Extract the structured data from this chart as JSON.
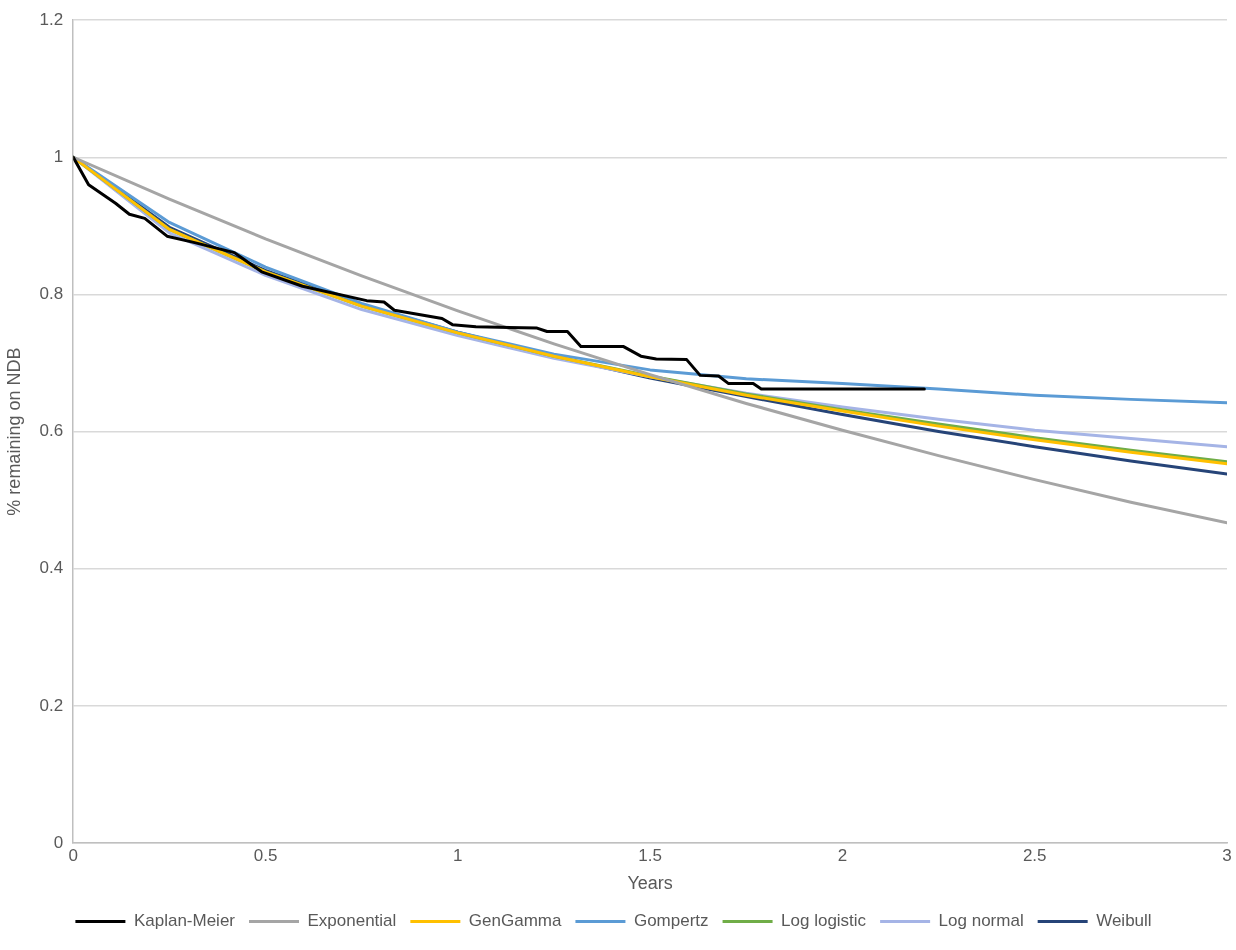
{
  "chart_data": {
    "type": "line",
    "xlabel": "Years",
    "ylabel": "% remaining on NDB",
    "xlim": [
      0,
      3
    ],
    "xticks": [
      0,
      0.5,
      1,
      1.5,
      2,
      2.5,
      3
    ],
    "ylim": [
      0,
      1.2
    ],
    "yticks": [
      0,
      0.2,
      0.4,
      0.6,
      0.8,
      1,
      1.2
    ],
    "grid": "y",
    "legend": "bottom",
    "marker": "none",
    "line_style": "solid",
    "series": [
      {
        "name": "Kaplan-Meier",
        "color": "#000000",
        "x": [
          0,
          0.04,
          0.11,
          0.146,
          0.186,
          0.244,
          0.313,
          0.419,
          0.49,
          0.596,
          0.763,
          0.808,
          0.835,
          0.959,
          0.986,
          1.047,
          1.206,
          1.232,
          1.285,
          1.32,
          1.431,
          1.476,
          1.516,
          1.595,
          1.63,
          1.678,
          1.704,
          1.768,
          1.789,
          2.213
        ],
        "values": [
          1,
          0.96,
          0.933,
          0.917,
          0.911,
          0.885,
          0.876,
          0.861,
          0.833,
          0.812,
          0.791,
          0.789,
          0.777,
          0.765,
          0.756,
          0.753,
          0.751,
          0.746,
          0.746,
          0.724,
          0.724,
          0.71,
          0.706,
          0.705,
          0.682,
          0.681,
          0.67,
          0.67,
          0.662,
          0.662
        ]
      },
      {
        "name": "Exponential",
        "color": "#a5a5a5",
        "x": [
          0,
          0.25,
          0.5,
          0.75,
          1,
          1.25,
          1.5,
          1.75,
          2,
          2.25,
          2.5,
          2.75,
          3
        ],
        "values": [
          1,
          0.939,
          0.881,
          0.827,
          0.776,
          0.728,
          0.683,
          0.641,
          0.602,
          0.565,
          0.53,
          0.497,
          0.467
        ]
      },
      {
        "name": "GenGamma",
        "color": "#ffc000",
        "x": [
          0,
          0.25,
          0.5,
          0.75,
          1,
          1.25,
          1.5,
          1.75,
          2,
          2.25,
          2.5,
          2.75,
          3
        ],
        "values": [
          1,
          0.895,
          0.833,
          0.783,
          0.744,
          0.71,
          0.68,
          0.653,
          0.63,
          0.608,
          0.588,
          0.57,
          0.553
        ]
      },
      {
        "name": "Gompertz",
        "color": "#5b9bd5",
        "x": [
          0,
          0.25,
          0.5,
          0.75,
          1,
          1.25,
          1.5,
          1.75,
          2,
          2.25,
          2.5,
          2.75,
          3
        ],
        "values": [
          1,
          0.905,
          0.84,
          0.787,
          0.745,
          0.713,
          0.69,
          0.677,
          0.67,
          0.662,
          0.653,
          0.647,
          0.642
        ]
      },
      {
        "name": "Log logistic",
        "color": "#70ad47",
        "x": [
          0,
          0.25,
          0.5,
          0.75,
          1,
          1.25,
          1.5,
          1.75,
          2,
          2.25,
          2.5,
          2.75,
          3
        ],
        "values": [
          1,
          0.895,
          0.833,
          0.783,
          0.744,
          0.71,
          0.681,
          0.655,
          0.632,
          0.611,
          0.591,
          0.573,
          0.556
        ]
      },
      {
        "name": "Log normal",
        "color": "#a5b4e6",
        "x": [
          0,
          0.25,
          0.5,
          0.75,
          1,
          1.25,
          1.5,
          1.75,
          2,
          2.25,
          2.5,
          2.75,
          3
        ],
        "values": [
          1,
          0.89,
          0.828,
          0.778,
          0.74,
          0.707,
          0.68,
          0.656,
          0.636,
          0.618,
          0.602,
          0.59,
          0.578
        ]
      },
      {
        "name": "Weibull",
        "color": "#264478",
        "x": [
          0,
          0.25,
          0.5,
          0.75,
          1,
          1.25,
          1.5,
          1.75,
          2,
          2.25,
          2.5,
          2.75,
          3
        ],
        "values": [
          1,
          0.898,
          0.835,
          0.785,
          0.745,
          0.71,
          0.678,
          0.651,
          0.625,
          0.6,
          0.578,
          0.557,
          0.538
        ]
      }
    ]
  }
}
